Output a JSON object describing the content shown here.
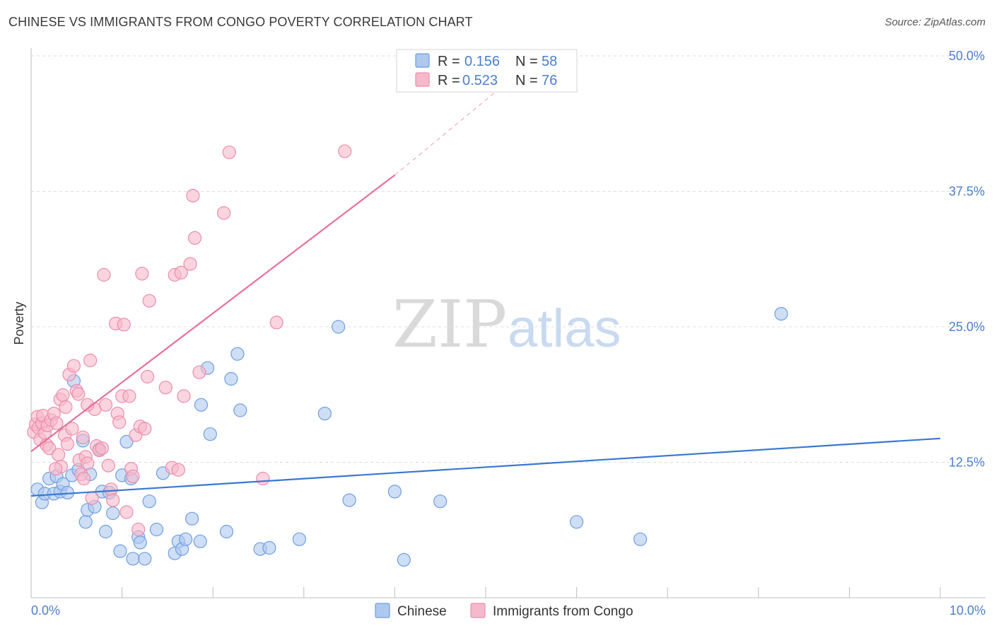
{
  "header": {
    "title": "CHINESE VS IMMIGRANTS FROM CONGO POVERTY CORRELATION CHART",
    "source": "Source: ZipAtlas.com"
  },
  "watermark": {
    "zip": "ZIP",
    "atlas": "atlas"
  },
  "colors": {
    "blue_fill": "#aec8ee",
    "blue_stroke": "#6f9ee0",
    "blue_line": "#3a78d0",
    "pink_fill": "#f6b9cc",
    "pink_stroke": "#ec8cab",
    "pink_line": "#e5709a",
    "tick_text": "#4a7fcf",
    "grid": "#dddddd"
  },
  "legend": {
    "r_label": "R =",
    "n_label": "N =",
    "rows": [
      {
        "series": "Chinese",
        "r": "0.156",
        "n": "58"
      },
      {
        "series": "Immigrants from Congo",
        "r": "0.523",
        "n": "76"
      }
    ]
  },
  "chart_data": {
    "type": "scatter",
    "title": "CHINESE VS IMMIGRANTS FROM CONGO POVERTY CORRELATION CHART",
    "xlabel": "",
    "ylabel": "Poverty",
    "xlim": [
      0,
      10
    ],
    "ylim": [
      0,
      52
    ],
    "x_tick_labels": [
      "0.0%",
      "10.0%"
    ],
    "y_ticks": [
      12.5,
      25.0,
      37.5,
      50.0
    ],
    "y_tick_labels": [
      "12.5%",
      "25.0%",
      "37.5%",
      "50.0%"
    ],
    "legend_labels": [
      "Chinese",
      "Immigrants from Congo"
    ],
    "series": [
      {
        "name": "Chinese",
        "r": 0.156,
        "n": 58,
        "trend": {
          "x0": 0.0,
          "y0": 9.4,
          "x1": 10.0,
          "y1": 14.7,
          "dashed_to": null
        },
        "points": [
          [
            0.07,
            10.0
          ],
          [
            0.12,
            8.8
          ],
          [
            0.15,
            9.6
          ],
          [
            0.2,
            11.0
          ],
          [
            0.25,
            9.6
          ],
          [
            0.28,
            11.2
          ],
          [
            0.32,
            9.8
          ],
          [
            0.35,
            10.5
          ],
          [
            0.4,
            9.7
          ],
          [
            0.45,
            11.3
          ],
          [
            0.47,
            20.0
          ],
          [
            0.52,
            11.8
          ],
          [
            0.57,
            14.5
          ],
          [
            0.6,
            7.0
          ],
          [
            0.62,
            8.1
          ],
          [
            0.65,
            11.4
          ],
          [
            0.7,
            8.4
          ],
          [
            0.75,
            13.7
          ],
          [
            0.78,
            9.8
          ],
          [
            0.82,
            6.1
          ],
          [
            0.86,
            9.7
          ],
          [
            0.9,
            7.8
          ],
          [
            0.98,
            4.3
          ],
          [
            1.0,
            11.3
          ],
          [
            1.05,
            14.4
          ],
          [
            1.1,
            11.0
          ],
          [
            1.12,
            3.6
          ],
          [
            1.18,
            5.6
          ],
          [
            1.2,
            5.1
          ],
          [
            1.25,
            3.6
          ],
          [
            1.3,
            8.9
          ],
          [
            1.38,
            6.3
          ],
          [
            1.45,
            11.5
          ],
          [
            1.58,
            4.1
          ],
          [
            1.62,
            5.2
          ],
          [
            1.66,
            4.5
          ],
          [
            1.7,
            5.4
          ],
          [
            1.77,
            7.3
          ],
          [
            1.86,
            5.2
          ],
          [
            1.87,
            17.8
          ],
          [
            1.94,
            21.2
          ],
          [
            1.97,
            15.1
          ],
          [
            2.15,
            6.1
          ],
          [
            2.2,
            20.2
          ],
          [
            2.27,
            22.5
          ],
          [
            2.3,
            17.3
          ],
          [
            2.52,
            4.5
          ],
          [
            2.62,
            4.6
          ],
          [
            2.95,
            5.4
          ],
          [
            3.23,
            17.0
          ],
          [
            3.38,
            25.0
          ],
          [
            3.5,
            9.0
          ],
          [
            4.0,
            9.8
          ],
          [
            4.1,
            3.5
          ],
          [
            4.5,
            8.9
          ],
          [
            6.0,
            7.0
          ],
          [
            6.7,
            5.4
          ],
          [
            8.25,
            26.2
          ]
        ]
      },
      {
        "name": "Immigrants from Congo",
        "r": 0.523,
        "n": 76,
        "trend": {
          "x0": 0.0,
          "y0": 13.5,
          "x1": 4.0,
          "y1": 39.0,
          "dashed_to": {
            "x": 5.3,
            "y": 48.0
          }
        },
        "points": [
          [
            0.03,
            15.3
          ],
          [
            0.05,
            16.0
          ],
          [
            0.07,
            16.7
          ],
          [
            0.08,
            15.7
          ],
          [
            0.1,
            14.6
          ],
          [
            0.12,
            16.1
          ],
          [
            0.13,
            16.8
          ],
          [
            0.15,
            15.2
          ],
          [
            0.17,
            14.1
          ],
          [
            0.18,
            15.9
          ],
          [
            0.2,
            13.8
          ],
          [
            0.22,
            16.4
          ],
          [
            0.25,
            17.0
          ],
          [
            0.28,
            16.1
          ],
          [
            0.3,
            13.2
          ],
          [
            0.32,
            18.3
          ],
          [
            0.33,
            12.1
          ],
          [
            0.35,
            18.7
          ],
          [
            0.37,
            15.0
          ],
          [
            0.38,
            17.6
          ],
          [
            0.4,
            14.2
          ],
          [
            0.42,
            20.6
          ],
          [
            0.45,
            15.6
          ],
          [
            0.47,
            21.4
          ],
          [
            0.5,
            19.1
          ],
          [
            0.52,
            18.8
          ],
          [
            0.53,
            12.7
          ],
          [
            0.55,
            11.4
          ],
          [
            0.57,
            14.8
          ],
          [
            0.58,
            11.0
          ],
          [
            0.6,
            13.0
          ],
          [
            0.62,
            12.4
          ],
          [
            0.65,
            21.9
          ],
          [
            0.67,
            9.2
          ],
          [
            0.7,
            17.4
          ],
          [
            0.72,
            14.0
          ],
          [
            0.75,
            13.6
          ],
          [
            0.78,
            13.8
          ],
          [
            0.8,
            29.8
          ],
          [
            0.82,
            17.8
          ],
          [
            0.85,
            12.2
          ],
          [
            0.88,
            10.0
          ],
          [
            0.9,
            9.0
          ],
          [
            0.93,
            25.3
          ],
          [
            0.95,
            17.0
          ],
          [
            0.97,
            16.2
          ],
          [
            1.0,
            18.6
          ],
          [
            1.02,
            25.2
          ],
          [
            1.05,
            7.9
          ],
          [
            1.08,
            18.6
          ],
          [
            1.1,
            11.9
          ],
          [
            1.12,
            11.2
          ],
          [
            1.15,
            15.0
          ],
          [
            1.18,
            6.3
          ],
          [
            1.2,
            15.8
          ],
          [
            1.22,
            29.9
          ],
          [
            1.25,
            15.6
          ],
          [
            1.28,
            20.4
          ],
          [
            1.3,
            27.4
          ],
          [
            1.48,
            19.4
          ],
          [
            1.55,
            12.0
          ],
          [
            1.58,
            29.8
          ],
          [
            1.62,
            11.8
          ],
          [
            1.65,
            30.0
          ],
          [
            1.68,
            18.6
          ],
          [
            1.75,
            30.8
          ],
          [
            1.78,
            37.1
          ],
          [
            1.8,
            33.2
          ],
          [
            1.85,
            20.8
          ],
          [
            2.12,
            35.5
          ],
          [
            2.18,
            41.1
          ],
          [
            2.55,
            11.0
          ],
          [
            2.7,
            25.4
          ],
          [
            3.45,
            41.2
          ],
          [
            0.27,
            11.9
          ],
          [
            0.62,
            17.8
          ]
        ]
      }
    ]
  }
}
